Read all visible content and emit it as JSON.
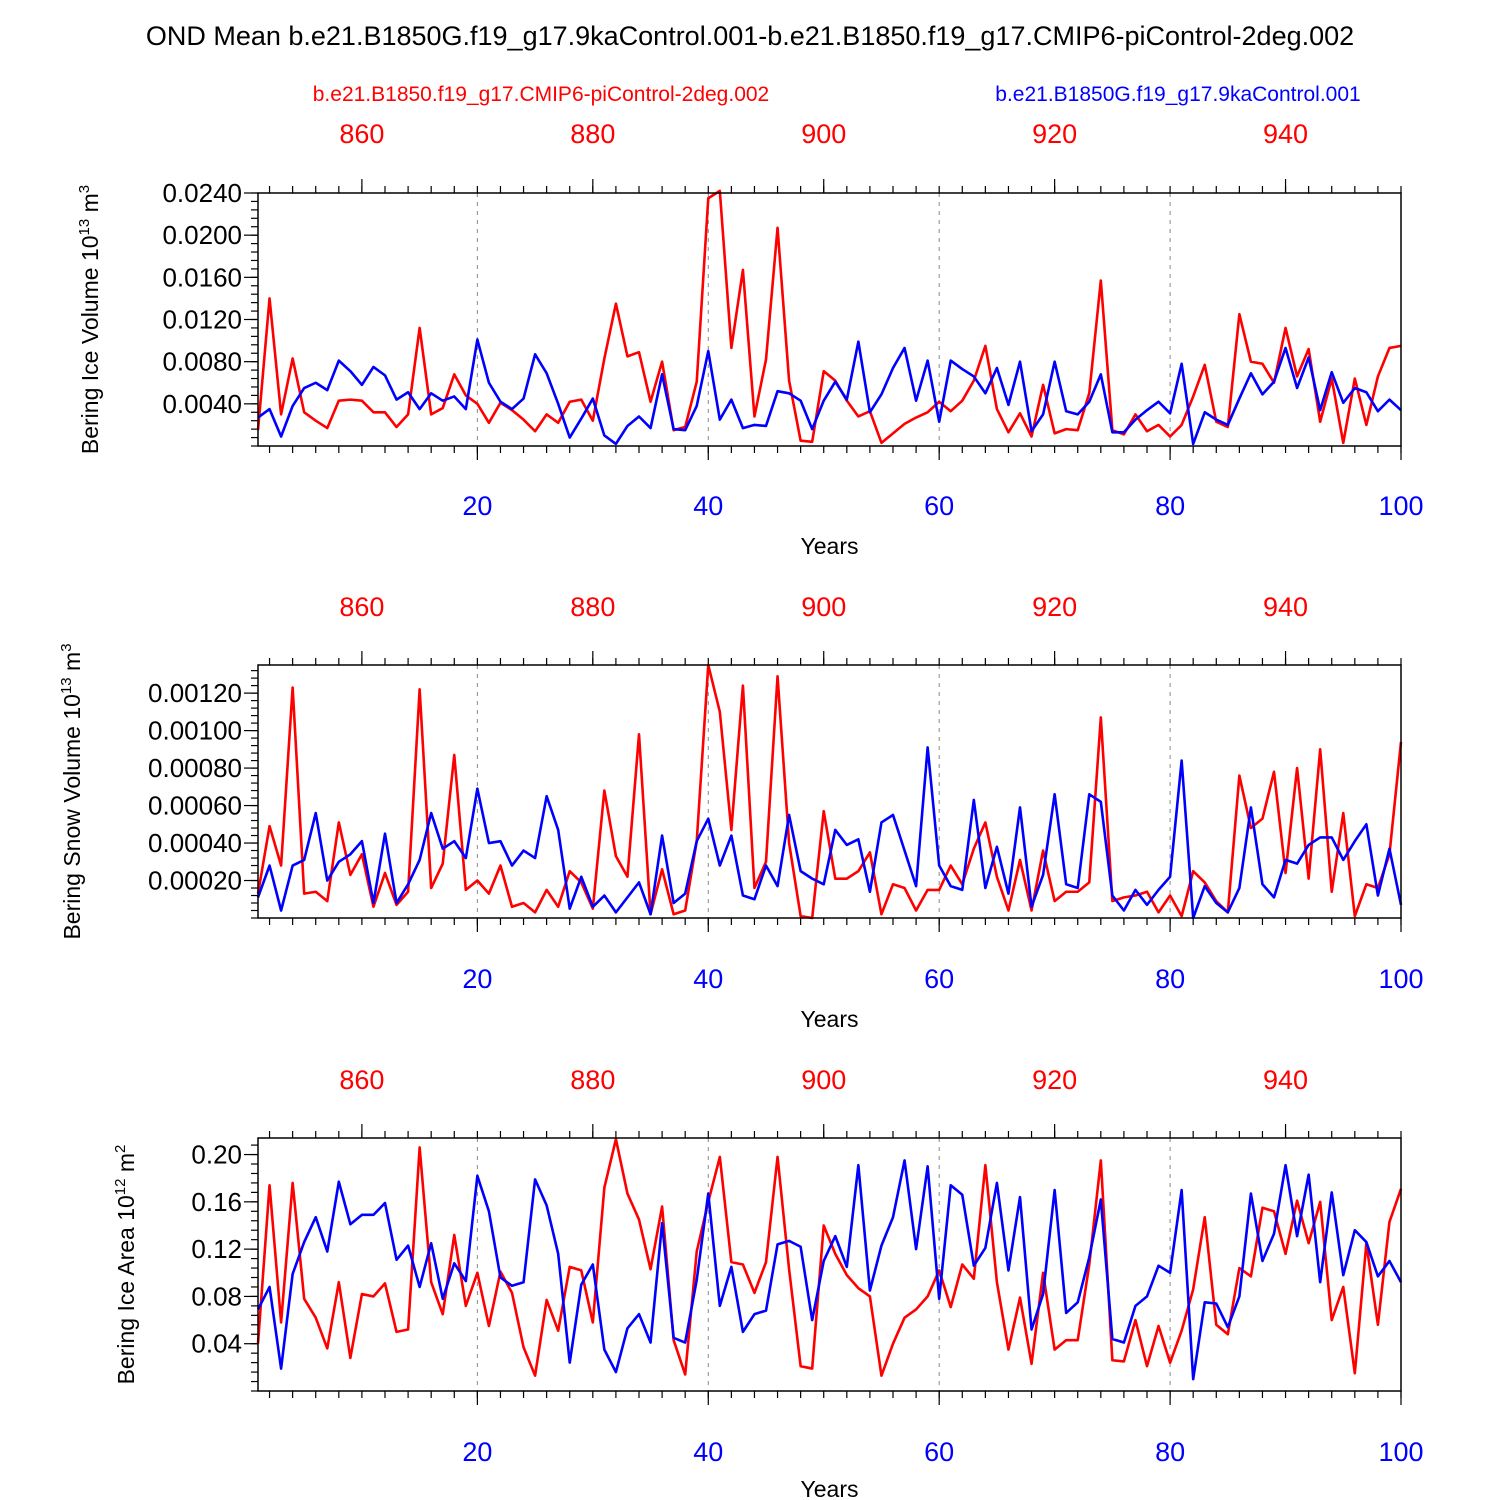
{
  "title": "OND Mean b.e21.B1850G.f19_g17.9kaControl.001-b.e21.B1850.f19_g17.CMIP6-piControl-2deg.002",
  "legend": {
    "red_label": "b.e21.B1850.f19_g17.CMIP6-piControl-2deg.002",
    "blue_label": "b.e21.B1850G.f19_g17.9kaControl.001"
  },
  "colors": {
    "red": "#ff0000",
    "blue": "#0000ff"
  },
  "chart_data": [
    {
      "type": "line",
      "ylabel_main": "Bering Ice Volume 10",
      "ylabel_exp": "13",
      "ylabel_unit": " m",
      "ylabel_unit_exp": "3",
      "xlabel": "Years",
      "xlim": [
        1,
        100
      ],
      "top_xlim": [
        851,
        950
      ],
      "ylim": [
        0.0,
        0.024
      ],
      "bottom_ticks": [
        "20",
        "40",
        "60",
        "80",
        "100"
      ],
      "bottom_tick_values": [
        20,
        40,
        60,
        80,
        100
      ],
      "top_ticks": [
        "860",
        "880",
        "900",
        "920",
        "940"
      ],
      "top_tick_values": [
        860,
        880,
        900,
        920,
        940
      ],
      "y_ticks": [
        "0.0040",
        "0.0080",
        "0.0120",
        "0.0160",
        "0.0200",
        "0.0240"
      ],
      "y_tick_values": [
        0.004,
        0.008,
        0.012,
        0.016,
        0.02,
        0.024
      ],
      "y_minor_step": 0.0008,
      "grid_x": [
        20,
        40,
        60,
        80
      ],
      "series": [
        {
          "name": "b.e21.B1850.f19_g17.CMIP6-piControl-2deg.002",
          "color": "red",
          "values": [
            0.0015,
            0.014,
            0.003,
            0.0083,
            0.0032,
            0.0024,
            0.0017,
            0.0043,
            0.0044,
            0.0043,
            0.0032,
            0.0032,
            0.0018,
            0.003,
            0.0112,
            0.003,
            0.0036,
            0.0068,
            0.0048,
            0.004,
            0.0022,
            0.0041,
            0.0034,
            0.0025,
            0.0014,
            0.003,
            0.0022,
            0.0042,
            0.0044,
            0.0024,
            0.0083,
            0.0135,
            0.0085,
            0.0089,
            0.0042,
            0.008,
            0.0015,
            0.0018,
            0.0061,
            0.0235,
            0.0242,
            0.0093,
            0.0167,
            0.0028,
            0.0082,
            0.0207,
            0.0062,
            0.0005,
            0.0004,
            0.0071,
            0.0062,
            0.0043,
            0.0028,
            0.0033,
            0.0003,
            0.0012,
            0.0021,
            0.0027,
            0.0032,
            0.0042,
            0.0033,
            0.0043,
            0.0062,
            0.0095,
            0.0035,
            0.0013,
            0.0031,
            0.0009,
            0.0058,
            0.0012,
            0.0016,
            0.0015,
            0.005,
            0.0157,
            0.0015,
            0.0011,
            0.003,
            0.0014,
            0.002,
            0.0009,
            0.002,
            0.0047,
            0.0077,
            0.0023,
            0.0018,
            0.0125,
            0.008,
            0.0078,
            0.006,
            0.0112,
            0.0066,
            0.0092,
            0.0023,
            0.0064,
            0.0003,
            0.0064,
            0.002,
            0.0066,
            0.0093,
            0.0095
          ]
        },
        {
          "name": "b.e21.B1850G.f19_g17.9kaControl.001",
          "color": "blue",
          "values": [
            0.0027,
            0.0035,
            0.0009,
            0.0038,
            0.0055,
            0.006,
            0.0053,
            0.0081,
            0.0071,
            0.0058,
            0.0075,
            0.0067,
            0.0044,
            0.0051,
            0.0035,
            0.005,
            0.0043,
            0.0047,
            0.0035,
            0.0101,
            0.006,
            0.0042,
            0.0035,
            0.0045,
            0.0087,
            0.0069,
            0.004,
            0.0008,
            0.0026,
            0.0045,
            0.001,
            0.0002,
            0.0019,
            0.0028,
            0.0017,
            0.0068,
            0.0016,
            0.0015,
            0.0038,
            0.009,
            0.0025,
            0.0044,
            0.0017,
            0.002,
            0.0019,
            0.0052,
            0.005,
            0.0043,
            0.0016,
            0.0043,
            0.0061,
            0.0044,
            0.0099,
            0.0032,
            0.0049,
            0.0074,
            0.0093,
            0.0043,
            0.0081,
            0.0023,
            0.0081,
            0.0073,
            0.0066,
            0.005,
            0.0074,
            0.0039,
            0.008,
            0.0014,
            0.003,
            0.008,
            0.0033,
            0.003,
            0.0042,
            0.0068,
            0.0013,
            0.0013,
            0.0025,
            0.0034,
            0.0042,
            0.0031,
            0.0078,
            0.0002,
            0.0032,
            0.0025,
            0.002,
            0.0045,
            0.0069,
            0.0049,
            0.0061,
            0.0093,
            0.0055,
            0.0084,
            0.0034,
            0.007,
            0.0041,
            0.0055,
            0.0051,
            0.0033,
            0.0044,
            0.0034
          ]
        }
      ]
    },
    {
      "type": "line",
      "ylabel_main": "Bering Snow Volume 10",
      "ylabel_exp": "13",
      "ylabel_unit": " m",
      "ylabel_unit_exp": "3",
      "xlabel": "Years",
      "xlim": [
        1,
        100
      ],
      "top_xlim": [
        851,
        950
      ],
      "ylim": [
        0.0,
        0.00135
      ],
      "bottom_ticks": [
        "20",
        "40",
        "60",
        "80",
        "100"
      ],
      "bottom_tick_values": [
        20,
        40,
        60,
        80,
        100
      ],
      "top_ticks": [
        "860",
        "880",
        "900",
        "920",
        "940"
      ],
      "top_tick_values": [
        860,
        880,
        900,
        920,
        940
      ],
      "y_ticks": [
        "0.00020",
        "0.00040",
        "0.00060",
        "0.00080",
        "0.00100",
        "0.00120"
      ],
      "y_tick_values": [
        0.0002,
        0.0004,
        0.0006,
        0.0008,
        0.001,
        0.0012
      ],
      "y_minor_step": 4e-05,
      "grid_x": [
        20,
        40,
        60,
        80
      ],
      "series": [
        {
          "name": "b.e21.B1850.f19_g17.CMIP6-piControl-2deg.002",
          "color": "red",
          "values": [
            0.00013,
            0.00049,
            0.00028,
            0.00123,
            0.00013,
            0.00014,
            9e-05,
            0.00051,
            0.00023,
            0.00034,
            6e-05,
            0.00024,
            7e-05,
            0.00014,
            0.00122,
            0.00016,
            0.00029,
            0.00087,
            0.00015,
            0.0002,
            0.00013,
            0.00028,
            6e-05,
            8e-05,
            3e-05,
            0.00015,
            6e-05,
            0.00025,
            0.00019,
            5e-05,
            0.00068,
            0.00033,
            0.00022,
            0.00098,
            2e-05,
            0.00026,
            2e-05,
            4e-05,
            0.00041,
            0.00135,
            0.0011,
            0.00047,
            0.00124,
            0.00016,
            0.0003,
            0.00129,
            0.0004,
            1e-05,
            0.0,
            0.00057,
            0.00021,
            0.00021,
            0.00025,
            0.00035,
            2e-05,
            0.00018,
            0.00016,
            4e-05,
            0.00015,
            0.00015,
            0.00028,
            0.00018,
            0.00037,
            0.00051,
            0.00022,
            4e-05,
            0.00031,
            4e-05,
            0.00036,
            9e-05,
            0.00014,
            0.00014,
            0.00019,
            0.00107,
            9e-05,
            0.00011,
            0.00012,
            0.00014,
            3e-05,
            0.00012,
            1e-05,
            0.00025,
            0.00019,
            9e-05,
            3e-05,
            0.00076,
            0.00048,
            0.00053,
            0.00078,
            0.00024,
            0.0008,
            0.00021,
            0.0009,
            0.00014,
            0.00056,
            1e-05,
            0.00018,
            0.00016,
            0.00034,
            0.00094
          ]
        },
        {
          "name": "b.e21.B1850G.f19_g17.9kaControl.001",
          "color": "blue",
          "values": [
            0.00011,
            0.00028,
            4e-05,
            0.00028,
            0.00031,
            0.00056,
            0.0002,
            0.0003,
            0.00034,
            0.00041,
            8e-05,
            0.00045,
            8e-05,
            0.00018,
            0.00031,
            0.00056,
            0.00037,
            0.00041,
            0.00032,
            0.00069,
            0.0004,
            0.00041,
            0.00028,
            0.00036,
            0.00032,
            0.00065,
            0.00047,
            5e-05,
            0.00022,
            6e-05,
            0.00012,
            3e-05,
            0.00011,
            0.00019,
            2e-05,
            0.00044,
            8e-05,
            0.00013,
            0.00041,
            0.00053,
            0.00028,
            0.00044,
            0.00012,
            0.0001,
            0.00028,
            0.00017,
            0.00055,
            0.00025,
            0.00021,
            0.00018,
            0.00047,
            0.00039,
            0.00042,
            0.00014,
            0.00051,
            0.00055,
            0.00036,
            0.00017,
            0.00091,
            0.00028,
            0.00017,
            0.00015,
            0.00063,
            0.00016,
            0.00038,
            0.00013,
            0.00059,
            6e-05,
            0.00023,
            0.00066,
            0.00018,
            0.00016,
            0.00066,
            0.00062,
            0.00012,
            4e-05,
            0.00015,
            7e-05,
            0.00015,
            0.00022,
            0.00084,
            0.0,
            0.00017,
            8e-05,
            3e-05,
            0.00016,
            0.00059,
            0.00018,
            0.00011,
            0.00031,
            0.00029,
            0.00039,
            0.00043,
            0.00043,
            0.00031,
            0.00041,
            0.0005,
            0.00012,
            0.00037,
            7e-05
          ]
        }
      ]
    },
    {
      "type": "line",
      "ylabel_main": "Bering Ice Area 10",
      "ylabel_exp": "12",
      "ylabel_unit": " m",
      "ylabel_unit_exp": "2",
      "xlabel": "Years",
      "xlim": [
        1,
        100
      ],
      "top_xlim": [
        851,
        950
      ],
      "ylim": [
        0.0,
        0.214
      ],
      "bottom_ticks": [
        "20",
        "40",
        "60",
        "80",
        "100"
      ],
      "bottom_tick_values": [
        20,
        40,
        60,
        80,
        100
      ],
      "top_ticks": [
        "860",
        "880",
        "900",
        "920",
        "940"
      ],
      "top_tick_values": [
        860,
        880,
        900,
        920,
        940
      ],
      "y_ticks": [
        "0.04",
        "0.08",
        "0.12",
        "0.16",
        "0.20"
      ],
      "y_tick_values": [
        0.04,
        0.08,
        0.12,
        0.16,
        0.2
      ],
      "y_minor_step": 0.008,
      "grid_x": [
        20,
        40,
        60,
        80
      ],
      "series": [
        {
          "name": "b.e21.B1850.f19_g17.CMIP6-piControl-2deg.002",
          "color": "red",
          "values": [
            0.04,
            0.174,
            0.058,
            0.176,
            0.078,
            0.062,
            0.036,
            0.092,
            0.028,
            0.082,
            0.08,
            0.091,
            0.05,
            0.052,
            0.206,
            0.092,
            0.065,
            0.132,
            0.072,
            0.1,
            0.055,
            0.101,
            0.083,
            0.037,
            0.013,
            0.077,
            0.051,
            0.105,
            0.102,
            0.058,
            0.172,
            0.213,
            0.167,
            0.145,
            0.103,
            0.156,
            0.043,
            0.014,
            0.118,
            0.16,
            0.198,
            0.109,
            0.107,
            0.083,
            0.109,
            0.198,
            0.103,
            0.021,
            0.019,
            0.14,
            0.116,
            0.098,
            0.087,
            0.08,
            0.013,
            0.04,
            0.062,
            0.069,
            0.08,
            0.102,
            0.071,
            0.107,
            0.095,
            0.191,
            0.092,
            0.035,
            0.079,
            0.023,
            0.1,
            0.035,
            0.043,
            0.043,
            0.107,
            0.195,
            0.026,
            0.025,
            0.06,
            0.021,
            0.055,
            0.024,
            0.051,
            0.086,
            0.147,
            0.056,
            0.048,
            0.104,
            0.097,
            0.155,
            0.152,
            0.116,
            0.161,
            0.125,
            0.16,
            0.06,
            0.088,
            0.015,
            0.125,
            0.056,
            0.143,
            0.171
          ]
        },
        {
          "name": "b.e21.B1850G.f19_g17.9kaControl.001",
          "color": "blue",
          "values": [
            0.069,
            0.088,
            0.019,
            0.099,
            0.126,
            0.147,
            0.118,
            0.177,
            0.141,
            0.149,
            0.149,
            0.159,
            0.111,
            0.123,
            0.088,
            0.125,
            0.078,
            0.108,
            0.093,
            0.182,
            0.152,
            0.096,
            0.089,
            0.092,
            0.179,
            0.157,
            0.116,
            0.024,
            0.09,
            0.107,
            0.035,
            0.016,
            0.053,
            0.065,
            0.041,
            0.142,
            0.045,
            0.041,
            0.094,
            0.167,
            0.072,
            0.105,
            0.05,
            0.065,
            0.068,
            0.124,
            0.127,
            0.122,
            0.06,
            0.11,
            0.131,
            0.105,
            0.191,
            0.085,
            0.123,
            0.147,
            0.195,
            0.12,
            0.19,
            0.078,
            0.174,
            0.166,
            0.106,
            0.121,
            0.176,
            0.102,
            0.164,
            0.052,
            0.082,
            0.17,
            0.066,
            0.075,
            0.113,
            0.162,
            0.044,
            0.041,
            0.072,
            0.08,
            0.106,
            0.1,
            0.17,
            0.01,
            0.075,
            0.074,
            0.054,
            0.08,
            0.167,
            0.11,
            0.133,
            0.191,
            0.131,
            0.183,
            0.092,
            0.168,
            0.098,
            0.136,
            0.126,
            0.097,
            0.11,
            0.092
          ]
        }
      ]
    }
  ]
}
